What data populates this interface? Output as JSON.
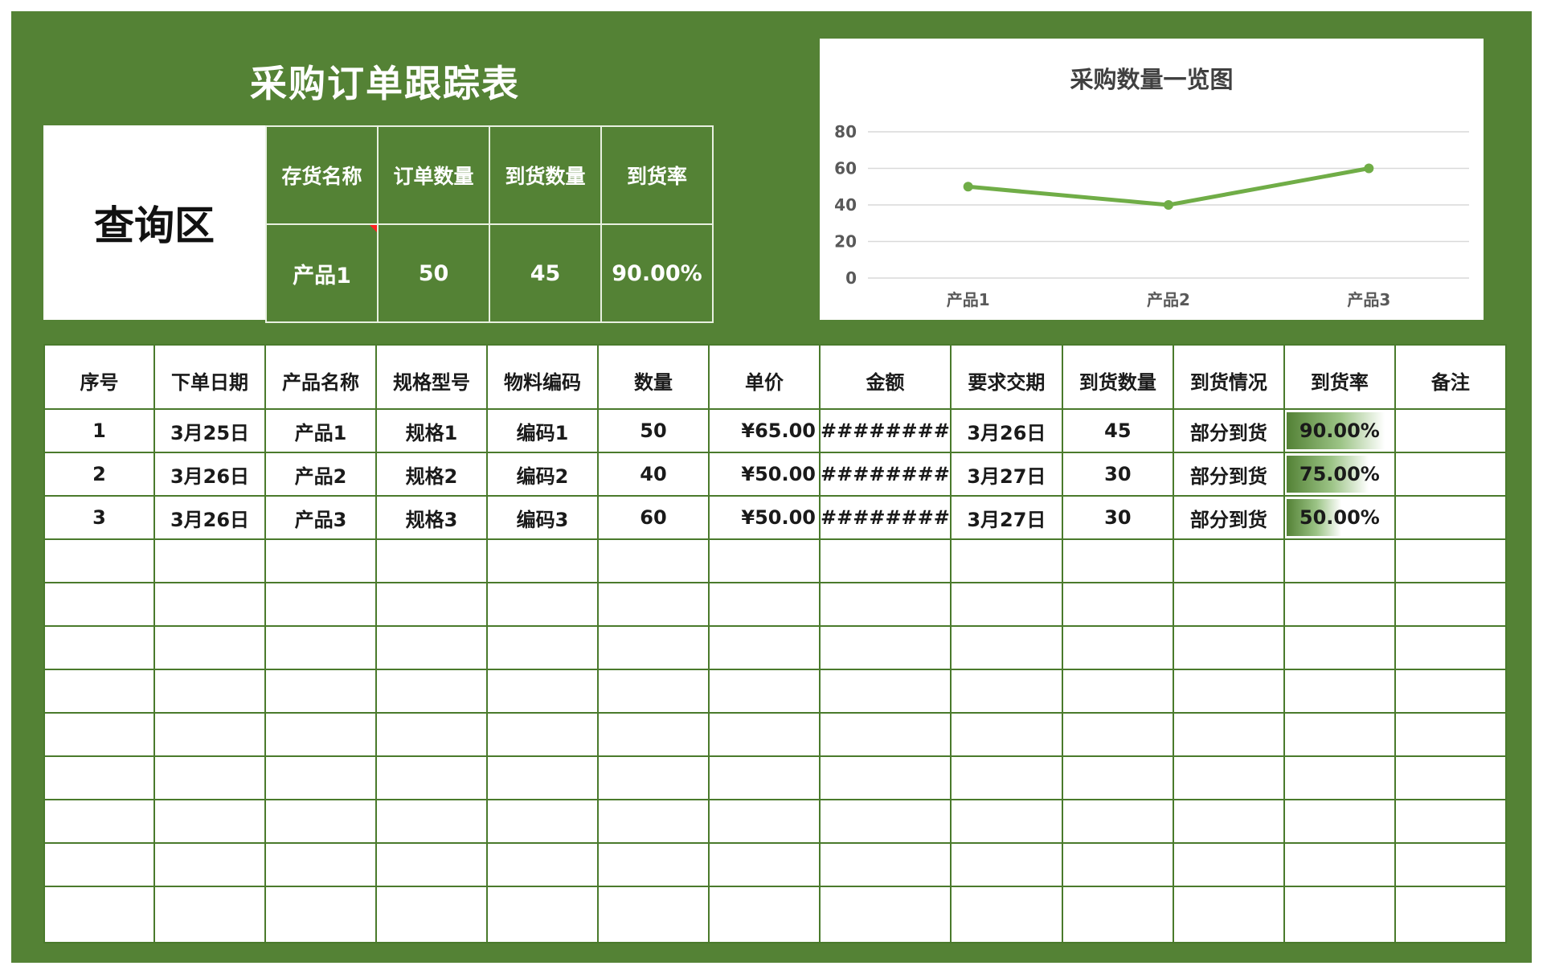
{
  "title": "采购订单跟踪表",
  "query": {
    "label": "查询区",
    "headers": [
      "存货名称",
      "订单数量",
      "到货数量",
      "到货率"
    ],
    "values": [
      "产品1",
      "50",
      "45",
      "90.00%"
    ]
  },
  "chart_data": {
    "type": "line",
    "title": "采购数量一览图",
    "categories": [
      "产品1",
      "产品2",
      "产品3"
    ],
    "series": [
      {
        "values": [
          50,
          40,
          60
        ]
      }
    ],
    "ylim": [
      0,
      80
    ],
    "yticks": [
      0,
      20,
      40,
      60,
      80
    ],
    "grid": true,
    "color": "#70ad47"
  },
  "table": {
    "headers": [
      "序号",
      "下单日期",
      "产品名称",
      "规格型号",
      "物料编码",
      "数量",
      "单价",
      "金额",
      "要求交期",
      "到货数量",
      "到货情况",
      "到货率",
      "备注"
    ],
    "rows": [
      {
        "no": "1",
        "date": "3月25日",
        "name": "产品1",
        "spec": "规格1",
        "code": "编码1",
        "qty": "50",
        "price": "¥65.00",
        "amount": "########",
        "due": "3月26日",
        "arrived": "45",
        "status": "部分到货",
        "rate": "90.00%",
        "rate_value": 0.9,
        "note": ""
      },
      {
        "no": "2",
        "date": "3月26日",
        "name": "产品2",
        "spec": "规格2",
        "code": "编码2",
        "qty": "40",
        "price": "¥50.00",
        "amount": "########",
        "due": "3月27日",
        "arrived": "30",
        "status": "部分到货",
        "rate": "75.00%",
        "rate_value": 0.75,
        "note": ""
      },
      {
        "no": "3",
        "date": "3月26日",
        "name": "产品3",
        "spec": "规格3",
        "code": "编码3",
        "qty": "60",
        "price": "¥50.00",
        "amount": "########",
        "due": "3月27日",
        "arrived": "30",
        "status": "部分到货",
        "rate": "50.00%",
        "rate_value": 0.5,
        "note": ""
      }
    ],
    "empty_rows": 9
  },
  "colors": {
    "background": "#548235",
    "line": "#70ad47",
    "bar": "#538135"
  }
}
